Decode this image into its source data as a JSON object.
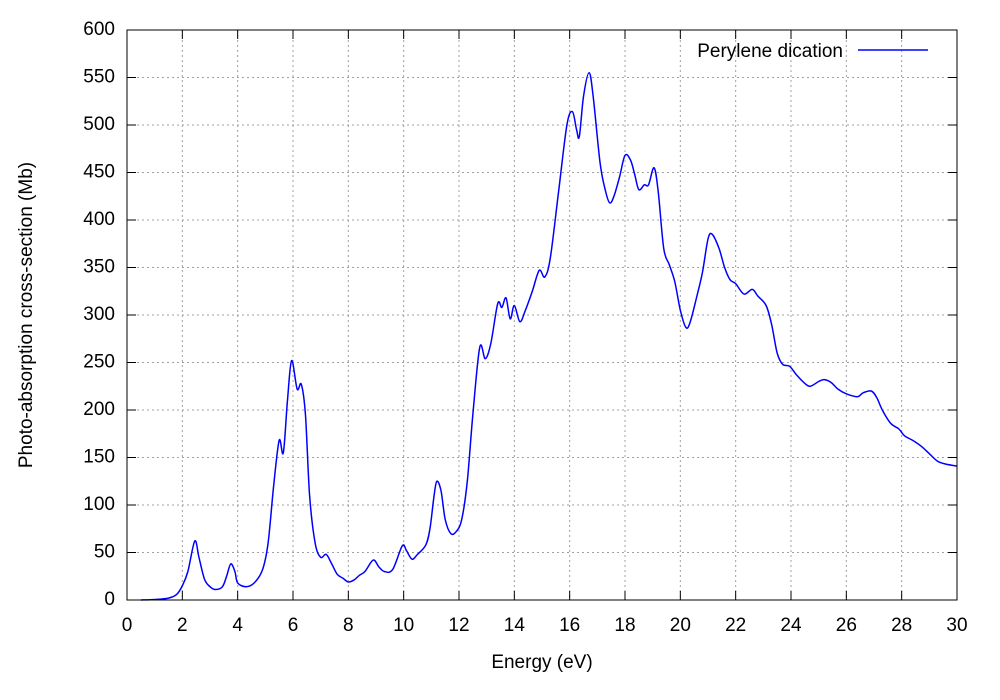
{
  "chart_data": {
    "type": "line",
    "xlabel": "Energy (eV)",
    "ylabel": "Photo-absorption cross-section (Mb)",
    "x": [
      0.5,
      1.0,
      1.5,
      1.8,
      2.0,
      2.2,
      2.45,
      2.6,
      2.8,
      3.0,
      3.2,
      3.45,
      3.6,
      3.75,
      3.9,
      4.0,
      4.3,
      4.6,
      4.9,
      5.1,
      5.3,
      5.5,
      5.65,
      5.8,
      5.95,
      6.15,
      6.3,
      6.45,
      6.6,
      6.8,
      7.0,
      7.2,
      7.4,
      7.6,
      7.8,
      8.0,
      8.2,
      8.4,
      8.6,
      8.9,
      9.1,
      9.3,
      9.6,
      9.95,
      10.1,
      10.3,
      10.5,
      10.8,
      10.95,
      11.1,
      11.2,
      11.35,
      11.5,
      11.7,
      11.9,
      12.1,
      12.3,
      12.5,
      12.75,
      12.95,
      13.15,
      13.4,
      13.55,
      13.7,
      13.85,
      14.0,
      14.2,
      14.4,
      14.65,
      14.9,
      15.1,
      15.3,
      15.6,
      15.9,
      16.1,
      16.25,
      16.35,
      16.5,
      16.7,
      16.85,
      17.1,
      17.3,
      17.45,
      17.6,
      17.8,
      18.0,
      18.2,
      18.35,
      18.5,
      18.7,
      18.85,
      19.05,
      19.2,
      19.4,
      19.6,
      19.8,
      20.0,
      20.2,
      20.35,
      20.6,
      20.8,
      21.0,
      21.15,
      21.4,
      21.6,
      21.8,
      22.0,
      22.3,
      22.6,
      22.8,
      23.1,
      23.3,
      23.5,
      23.7,
      23.95,
      24.2,
      24.5,
      24.7,
      25.0,
      25.2,
      25.45,
      25.7,
      26.0,
      26.4,
      26.6,
      26.9,
      27.1,
      27.3,
      27.6,
      27.9,
      28.1,
      28.4,
      28.7,
      29.0,
      29.3,
      29.6,
      30
    ],
    "series": [
      {
        "name": "Perylene dication",
        "color": "#0000ff",
        "values": [
          0,
          0.5,
          2,
          6,
          15,
          30,
          62,
          45,
          22,
          14,
          11,
          14,
          25,
          38,
          30,
          18,
          14,
          18,
          32,
          60,
          120,
          168,
          155,
          210,
          252,
          222,
          227,
          195,
          110,
          60,
          45,
          48,
          38,
          27,
          23,
          19,
          21,
          26,
          30,
          42,
          35,
          30,
          32,
          57,
          52,
          43,
          48,
          58,
          75,
          110,
          125,
          115,
          85,
          70,
          72,
          85,
          125,
          195,
          266,
          254,
          270,
          312,
          308,
          318,
          296,
          310,
          293,
          305,
          325,
          347,
          340,
          360,
          430,
          500,
          514,
          495,
          488,
          530,
          555,
          530,
          460,
          430,
          418,
          425,
          445,
          468,
          463,
          448,
          432,
          437,
          437,
          455,
          430,
          370,
          353,
          335,
          305,
          287,
          292,
          320,
          345,
          380,
          385,
          370,
          350,
          337,
          333,
          322,
          327,
          320,
          310,
          290,
          260,
          248,
          246,
          237,
          228,
          225,
          230,
          232,
          229,
          222,
          217,
          214,
          218,
          220,
          213,
          200,
          186,
          180,
          173,
          168,
          162,
          154,
          146,
          143,
          141
        ]
      }
    ],
    "xlim": [
      0,
      30
    ],
    "ylim": [
      0,
      600
    ],
    "xticks": [
      0,
      2,
      4,
      6,
      8,
      10,
      12,
      14,
      16,
      18,
      20,
      22,
      24,
      26,
      28,
      30
    ],
    "yticks": [
      0,
      50,
      100,
      150,
      200,
      250,
      300,
      350,
      400,
      450,
      500,
      550,
      600
    ],
    "grid": true,
    "legend": "top-right"
  }
}
